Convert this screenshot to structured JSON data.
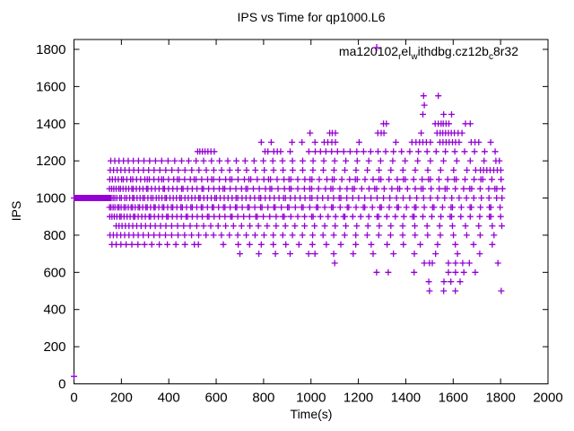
{
  "colors": {
    "marker": "#9400d3",
    "axis": "#000000",
    "background": "#ffffff"
  },
  "chart_data": {
    "type": "scatter",
    "title": "IPS vs Time for qp1000.L6",
    "xlabel": "Time(s)",
    "ylabel": "IPS",
    "xlim": [
      0,
      2000
    ],
    "ylim": [
      0,
      1853
    ],
    "xticks": [
      0,
      200,
      400,
      600,
      800,
      1000,
      1200,
      1400,
      1600,
      1800,
      2000
    ],
    "yticks": [
      0,
      200,
      400,
      600,
      800,
      1000,
      1200,
      1400,
      1600,
      1800
    ],
    "grid": false,
    "legend_position": "top-right-inside",
    "marker": "plus",
    "series_name": "ma120102_rel_withdbg.cz12b_c8r32",
    "legend_segments": [
      {
        "text": "ma120102",
        "sub": false
      },
      {
        "text": "r",
        "sub": true
      },
      {
        "text": "el",
        "sub": false
      },
      {
        "text": "w",
        "sub": true
      },
      {
        "text": "ithdbg.cz12b",
        "sub": false
      },
      {
        "text": "c",
        "sub": true
      },
      {
        "text": "8r32",
        "sub": false
      }
    ],
    "rows": [
      {
        "ips": 1550,
        "t": [
          1475,
          1537
        ]
      },
      {
        "ips": 1500,
        "t": [
          1478
        ]
      },
      {
        "ips": 1450,
        "t": [
          1472,
          1560,
          1593
        ]
      },
      {
        "ips": 1400,
        "t": [
          1306,
          1318,
          1524,
          1537,
          1549,
          1558,
          1570,
          1582,
          1652,
          1672
        ]
      },
      {
        "ips": 1350,
        "t": [
          996,
          1079,
          1090,
          1103,
          1282,
          1296,
          1308,
          1465,
          1532,
          1545,
          1556,
          1568,
          1580,
          1592,
          1605,
          1621,
          1637
        ]
      },
      {
        "ips": 1300,
        "t": [
          790,
          832,
          920,
          962,
          1017,
          1056,
          1071,
          1088,
          1103,
          1203,
          1358,
          1426,
          1443,
          1458,
          1472,
          1487,
          1504,
          1544,
          1557,
          1570,
          1583,
          1597,
          1610,
          1625,
          1676,
          1692,
          1708,
          1758
        ]
      },
      {
        "ips": 1250,
        "t": [
          522,
          531,
          542,
          553,
          565,
          578,
          592,
          806,
          818,
          843,
          858,
          872,
          912,
          991,
          1018,
          1040,
          1063,
          1087,
          1112,
          1138,
          1165,
          1193,
          1222,
          1252,
          1283,
          1315,
          1348,
          1382,
          1417,
          1453,
          1490,
          1528,
          1567,
          1607,
          1648,
          1690,
          1733,
          1777
        ]
      },
      {
        "ips": 1200,
        "t": [
          155,
          172,
          190,
          209,
          229,
          250,
          272,
          295,
          319,
          344,
          370,
          397,
          425,
          454,
          484,
          515,
          547,
          580,
          614,
          649,
          685,
          722,
          760,
          799,
          839,
          880,
          922,
          965,
          1009,
          1054,
          1100,
          1147,
          1195,
          1244,
          1294,
          1345,
          1397,
          1450,
          1504,
          1559,
          1615,
          1672,
          1730,
          1780,
          1795
        ]
      },
      {
        "ips": 1150,
        "t": [
          153,
          167,
          182,
          198,
          215,
          233,
          252,
          272,
          293,
          315,
          338,
          362,
          387,
          413,
          440,
          468,
          497,
          527,
          558,
          590,
          623,
          657,
          692,
          728,
          765,
          803,
          842,
          882,
          923,
          965,
          1008,
          1052,
          1097,
          1143,
          1190,
          1238,
          1287,
          1337,
          1388,
          1440,
          1493,
          1547,
          1602,
          1658,
          1695,
          1715,
          1728,
          1742,
          1756,
          1771,
          1786,
          1801
        ]
      },
      {
        "ips": 1100,
        "t": [
          151,
          162,
          174,
          187,
          201,
          208,
          223,
          239,
          248,
          264,
          281,
          299,
          309,
          318,
          337,
          357,
          370,
          378,
          399,
          421,
          436,
          444,
          467,
          491,
          507,
          515,
          539,
          564,
          581,
          589,
          614,
          640,
          658,
          666,
          692,
          719,
          738,
          746,
          773,
          801,
          821,
          829,
          857,
          886,
          907,
          915,
          944,
          974,
          996,
          1004,
          1035,
          1067,
          1090,
          1098,
          1130,
          1163,
          1187,
          1195,
          1228,
          1262,
          1287,
          1295,
          1329,
          1364,
          1390,
          1398,
          1433,
          1469,
          1496,
          1504,
          1540,
          1577,
          1605,
          1613,
          1650,
          1688,
          1717,
          1725,
          1763,
          1802
        ]
      },
      {
        "ips": 1050,
        "t": [
          150,
          159,
          168,
          178,
          189,
          196,
          207,
          219,
          231,
          244,
          250,
          263,
          277,
          291,
          306,
          312,
          327,
          343,
          359,
          376,
          382,
          399,
          417,
          435,
          454,
          460,
          479,
          499,
          519,
          540,
          546,
          568,
          590,
          613,
          629,
          636,
          659,
          683,
          707,
          725,
          732,
          757,
          782,
          808,
          827,
          834,
          861,
          888,
          909,
          916,
          944,
          972,
          995,
          1003,
          1032,
          1061,
          1084,
          1092,
          1122,
          1152,
          1175,
          1183,
          1214,
          1245,
          1269,
          1277,
          1309,
          1341,
          1366,
          1374,
          1407,
          1440,
          1465,
          1473,
          1507,
          1541,
          1566,
          1574,
          1609,
          1644,
          1670,
          1678,
          1714,
          1750,
          1776,
          1784,
          1808
        ]
      },
      {
        "ips": 1000,
        "t": [
          0,
          2,
          4,
          6,
          8,
          10,
          12,
          14,
          16,
          18,
          20,
          22,
          24,
          26,
          28,
          30,
          32,
          34,
          36,
          38,
          40,
          42,
          44,
          46,
          48,
          50,
          52,
          54,
          56,
          58,
          60,
          62,
          64,
          66,
          68,
          70,
          72,
          74,
          76,
          78,
          80,
          82,
          84,
          86,
          88,
          90,
          92,
          94,
          96,
          98,
          100,
          102,
          104,
          106,
          108,
          110,
          112,
          114,
          116,
          118,
          120,
          122,
          124,
          126,
          128,
          130,
          132,
          134,
          136,
          138,
          140,
          142,
          144,
          146,
          148,
          152,
          157,
          165,
          172,
          181,
          193,
          200,
          214,
          222,
          235,
          247,
          253,
          266,
          279,
          291,
          298,
          312,
          325,
          333,
          347,
          358,
          371,
          384,
          390,
          405,
          419,
          432,
          446,
          453,
          468,
          482,
          497,
          511,
          526,
          532,
          548,
          563,
          579,
          594,
          601,
          617,
          634,
          650,
          667,
          684,
          691,
          709,
          726,
          744,
          762,
          781,
          788,
          807,
          826,
          845,
          865,
          884,
          892,
          913,
          933,
          954,
          975,
          996,
          1004,
          1027,
          1049,
          1072,
          1095,
          1119,
          1126,
          1151,
          1176,
          1201,
          1227,
          1253,
          1279,
          1306,
          1333,
          1361,
          1389,
          1417,
          1446,
          1475,
          1504,
          1534,
          1564,
          1594,
          1625,
          1656,
          1687,
          1719,
          1751,
          1783,
          1806
        ]
      },
      {
        "ips": 950,
        "t": [
          150,
          156,
          165,
          173,
          184,
          190,
          199,
          211,
          218,
          229,
          241,
          247,
          258,
          271,
          277,
          290,
          303,
          309,
          323,
          337,
          343,
          358,
          373,
          379,
          395,
          411,
          417,
          434,
          451,
          457,
          475,
          493,
          499,
          518,
          537,
          543,
          563,
          583,
          589,
          610,
          631,
          637,
          659,
          681,
          687,
          710,
          733,
          739,
          763,
          787,
          793,
          818,
          843,
          849,
          875,
          901,
          907,
          934,
          961,
          967,
          995,
          1023,
          1029,
          1058,
          1087,
          1093,
          1123,
          1153,
          1159,
          1190,
          1221,
          1227,
          1259,
          1291,
          1297,
          1330,
          1363,
          1369,
          1403,
          1437,
          1443,
          1478,
          1513,
          1519,
          1555,
          1591,
          1597,
          1634,
          1671,
          1677,
          1715,
          1753,
          1759,
          1798
        ]
      },
      {
        "ips": 900,
        "t": [
          151,
          160,
          170,
          181,
          193,
          199,
          211,
          224,
          237,
          251,
          257,
          271,
          286,
          301,
          317,
          323,
          339,
          356,
          373,
          391,
          397,
          415,
          434,
          453,
          473,
          479,
          499,
          520,
          541,
          563,
          569,
          591,
          614,
          637,
          661,
          667,
          691,
          716,
          741,
          767,
          773,
          799,
          826,
          853,
          881,
          887,
          915,
          944,
          973,
          1003,
          1009,
          1040,
          1072,
          1104,
          1137,
          1143,
          1176,
          1210,
          1244,
          1279,
          1285,
          1320,
          1356,
          1392,
          1429,
          1435,
          1472,
          1510,
          1548,
          1587,
          1593,
          1632,
          1672,
          1712,
          1753,
          1759,
          1800
        ]
      },
      {
        "ips": 850,
        "t": [
          178,
          190,
          203,
          217,
          232,
          248,
          265,
          283,
          302,
          322,
          343,
          365,
          388,
          412,
          437,
          463,
          490,
          518,
          547,
          577,
          608,
          640,
          673,
          707,
          742,
          778,
          815,
          853,
          892,
          932,
          973,
          1015,
          1058,
          1102,
          1147,
          1193,
          1240,
          1288,
          1337,
          1387,
          1438,
          1490,
          1543,
          1597,
          1652,
          1708,
          1765,
          1805
        ]
      },
      {
        "ips": 800,
        "t": [
          152,
          166,
          181,
          197,
          214,
          232,
          251,
          271,
          292,
          314,
          337,
          361,
          386,
          412,
          439,
          467,
          496,
          526,
          557,
          589,
          622,
          656,
          691,
          727,
          764,
          802,
          841,
          881,
          922,
          964,
          1007,
          1051,
          1096,
          1142,
          1189,
          1237,
          1286,
          1336,
          1387,
          1439,
          1492,
          1546,
          1601,
          1657,
          1714,
          1772
        ]
      },
      {
        "ips": 750,
        "t": [
          160,
          178,
          198,
          220,
          244,
          270,
          298,
          328,
          360,
          394,
          430,
          468,
          508,
          525,
          630,
          693,
          741,
          790,
          841,
          894,
          949,
          1006,
          1065,
          1126,
          1189,
          1254,
          1321,
          1390,
          1461,
          1534,
          1609,
          1686,
          1765
        ]
      },
      {
        "ips": 700,
        "t": [
          700,
          780,
          850,
          912,
          990,
          1017,
          1096,
          1178,
          1262,
          1348,
          1436,
          1526,
          1618,
          1712
        ]
      },
      {
        "ips": 650,
        "t": [
          1100,
          1478,
          1500,
          1512,
          1580,
          1610,
          1640,
          1668,
          1789
        ]
      },
      {
        "ips": 600,
        "t": [
          1277,
          1326,
          1435,
          1580,
          1610,
          1645,
          1693
        ]
      },
      {
        "ips": 550,
        "t": [
          1497,
          1561,
          1590,
          1629
        ]
      },
      {
        "ips": 500,
        "t": [
          1500,
          1560,
          1609,
          1803
        ]
      },
      {
        "ips": 40,
        "t": [
          0
        ]
      }
    ]
  }
}
